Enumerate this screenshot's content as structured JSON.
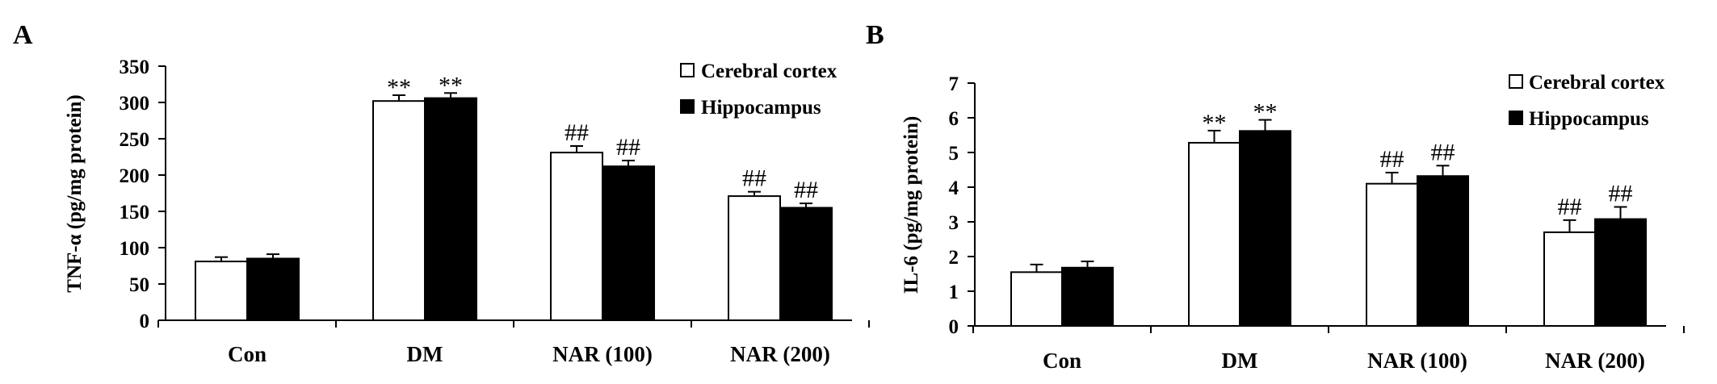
{
  "chart_data": [
    {
      "type": "bar",
      "panel": "A",
      "ylabel": "TNF-α (pg/mg protein)",
      "xlabel": "",
      "ylim": [
        0,
        350
      ],
      "yticks": [
        "0",
        "50",
        "100",
        "150",
        "200",
        "250",
        "300",
        "350"
      ],
      "ytick_values": [
        0,
        50,
        100,
        150,
        200,
        250,
        300,
        350
      ],
      "categories": [
        "Con",
        "DM",
        "NAR (100)",
        "NAR (200)"
      ],
      "legend_position": "top-right",
      "series": [
        {
          "name": "Cerebral cortex",
          "fill": "#ffffff",
          "values": [
            81,
            302,
            231,
            171
          ],
          "errors": [
            6,
            8,
            9,
            6
          ],
          "labels": [
            "",
            "**",
            "##",
            "##"
          ]
        },
        {
          "name": "Hippocampus",
          "fill": "#000000",
          "values": [
            85,
            306,
            212,
            155
          ],
          "errors": [
            6,
            7,
            8,
            6
          ],
          "labels": [
            "",
            "**",
            "##",
            "##"
          ]
        }
      ]
    },
    {
      "type": "bar",
      "panel": "B",
      "ylabel": "IL-6 (pg/mg protein)",
      "xlabel": "",
      "ylim": [
        0,
        7
      ],
      "yticks": [
        "0",
        "1",
        "2",
        "3",
        "4",
        "5",
        "6",
        "7"
      ],
      "ytick_values": [
        0,
        1,
        2,
        3,
        4,
        5,
        6,
        7
      ],
      "categories": [
        "Con",
        "DM",
        "NAR (100)",
        "NAR (200)"
      ],
      "legend_position": "top-right",
      "series": [
        {
          "name": "Cerebral cortex",
          "fill": "#ffffff",
          "values": [
            1.55,
            5.28,
            4.1,
            2.7
          ],
          "errors": [
            0.22,
            0.35,
            0.32,
            0.35
          ],
          "labels": [
            "",
            "**",
            "##",
            "##"
          ]
        },
        {
          "name": "Hippocampus",
          "fill": "#000000",
          "values": [
            1.68,
            5.62,
            4.32,
            3.08
          ],
          "errors": [
            0.18,
            0.32,
            0.3,
            0.35
          ],
          "labels": [
            "",
            "**",
            "##",
            "##"
          ]
        }
      ]
    }
  ]
}
